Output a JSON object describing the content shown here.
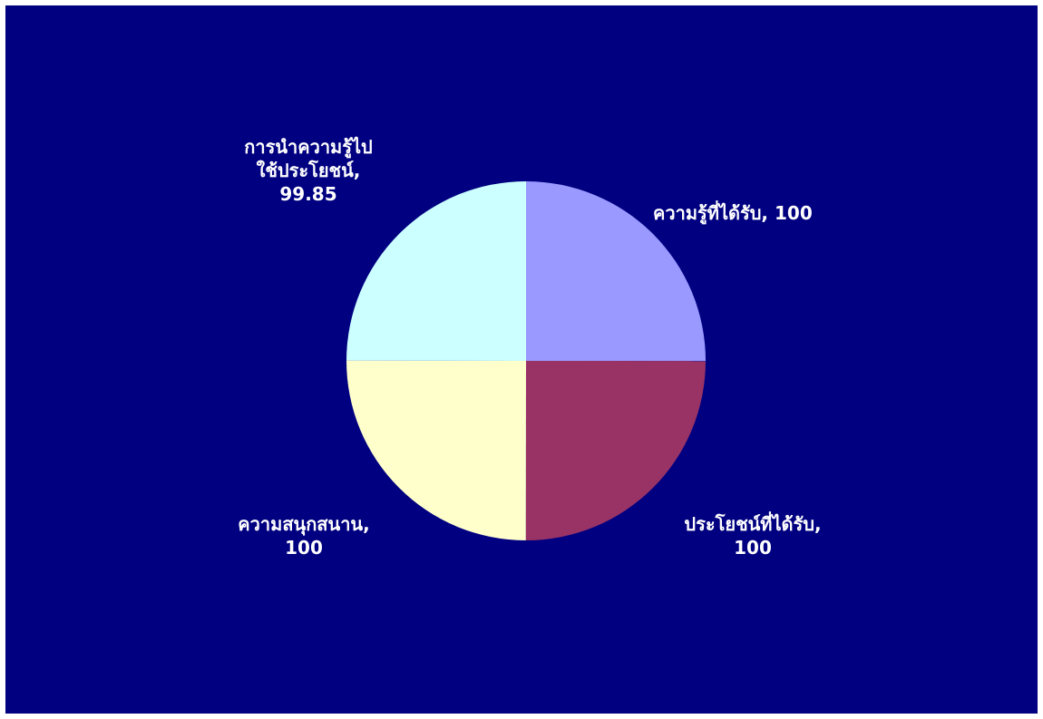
{
  "chart_data": {
    "type": "pie",
    "title": "",
    "slices": [
      {
        "label": "ความรู้ที่ได้รับ",
        "value": 100,
        "color": "#9999FF",
        "label_text": "ความรู้ที่ได้รับ, 100"
      },
      {
        "label": "ประโยชน์ที่ได้รับ",
        "value": 100,
        "color": "#993366",
        "label_text": "ประโยชน์ที่ได้รับ,\n100"
      },
      {
        "label": "ความสนุกสนาน",
        "value": 100,
        "color": "#FFFFCC",
        "label_text": "ความสนุกสนาน,\n100"
      },
      {
        "label": "การนำความรู้ไปใช้ประโยชน์",
        "value": 99.85,
        "color": "#CCFFFF",
        "label_text": "การนำความรู้ไป\nใช้ประโยชน์,\n99.85"
      }
    ],
    "background_color": "#000080",
    "legend": "none",
    "data_labels": "category-and-value"
  }
}
